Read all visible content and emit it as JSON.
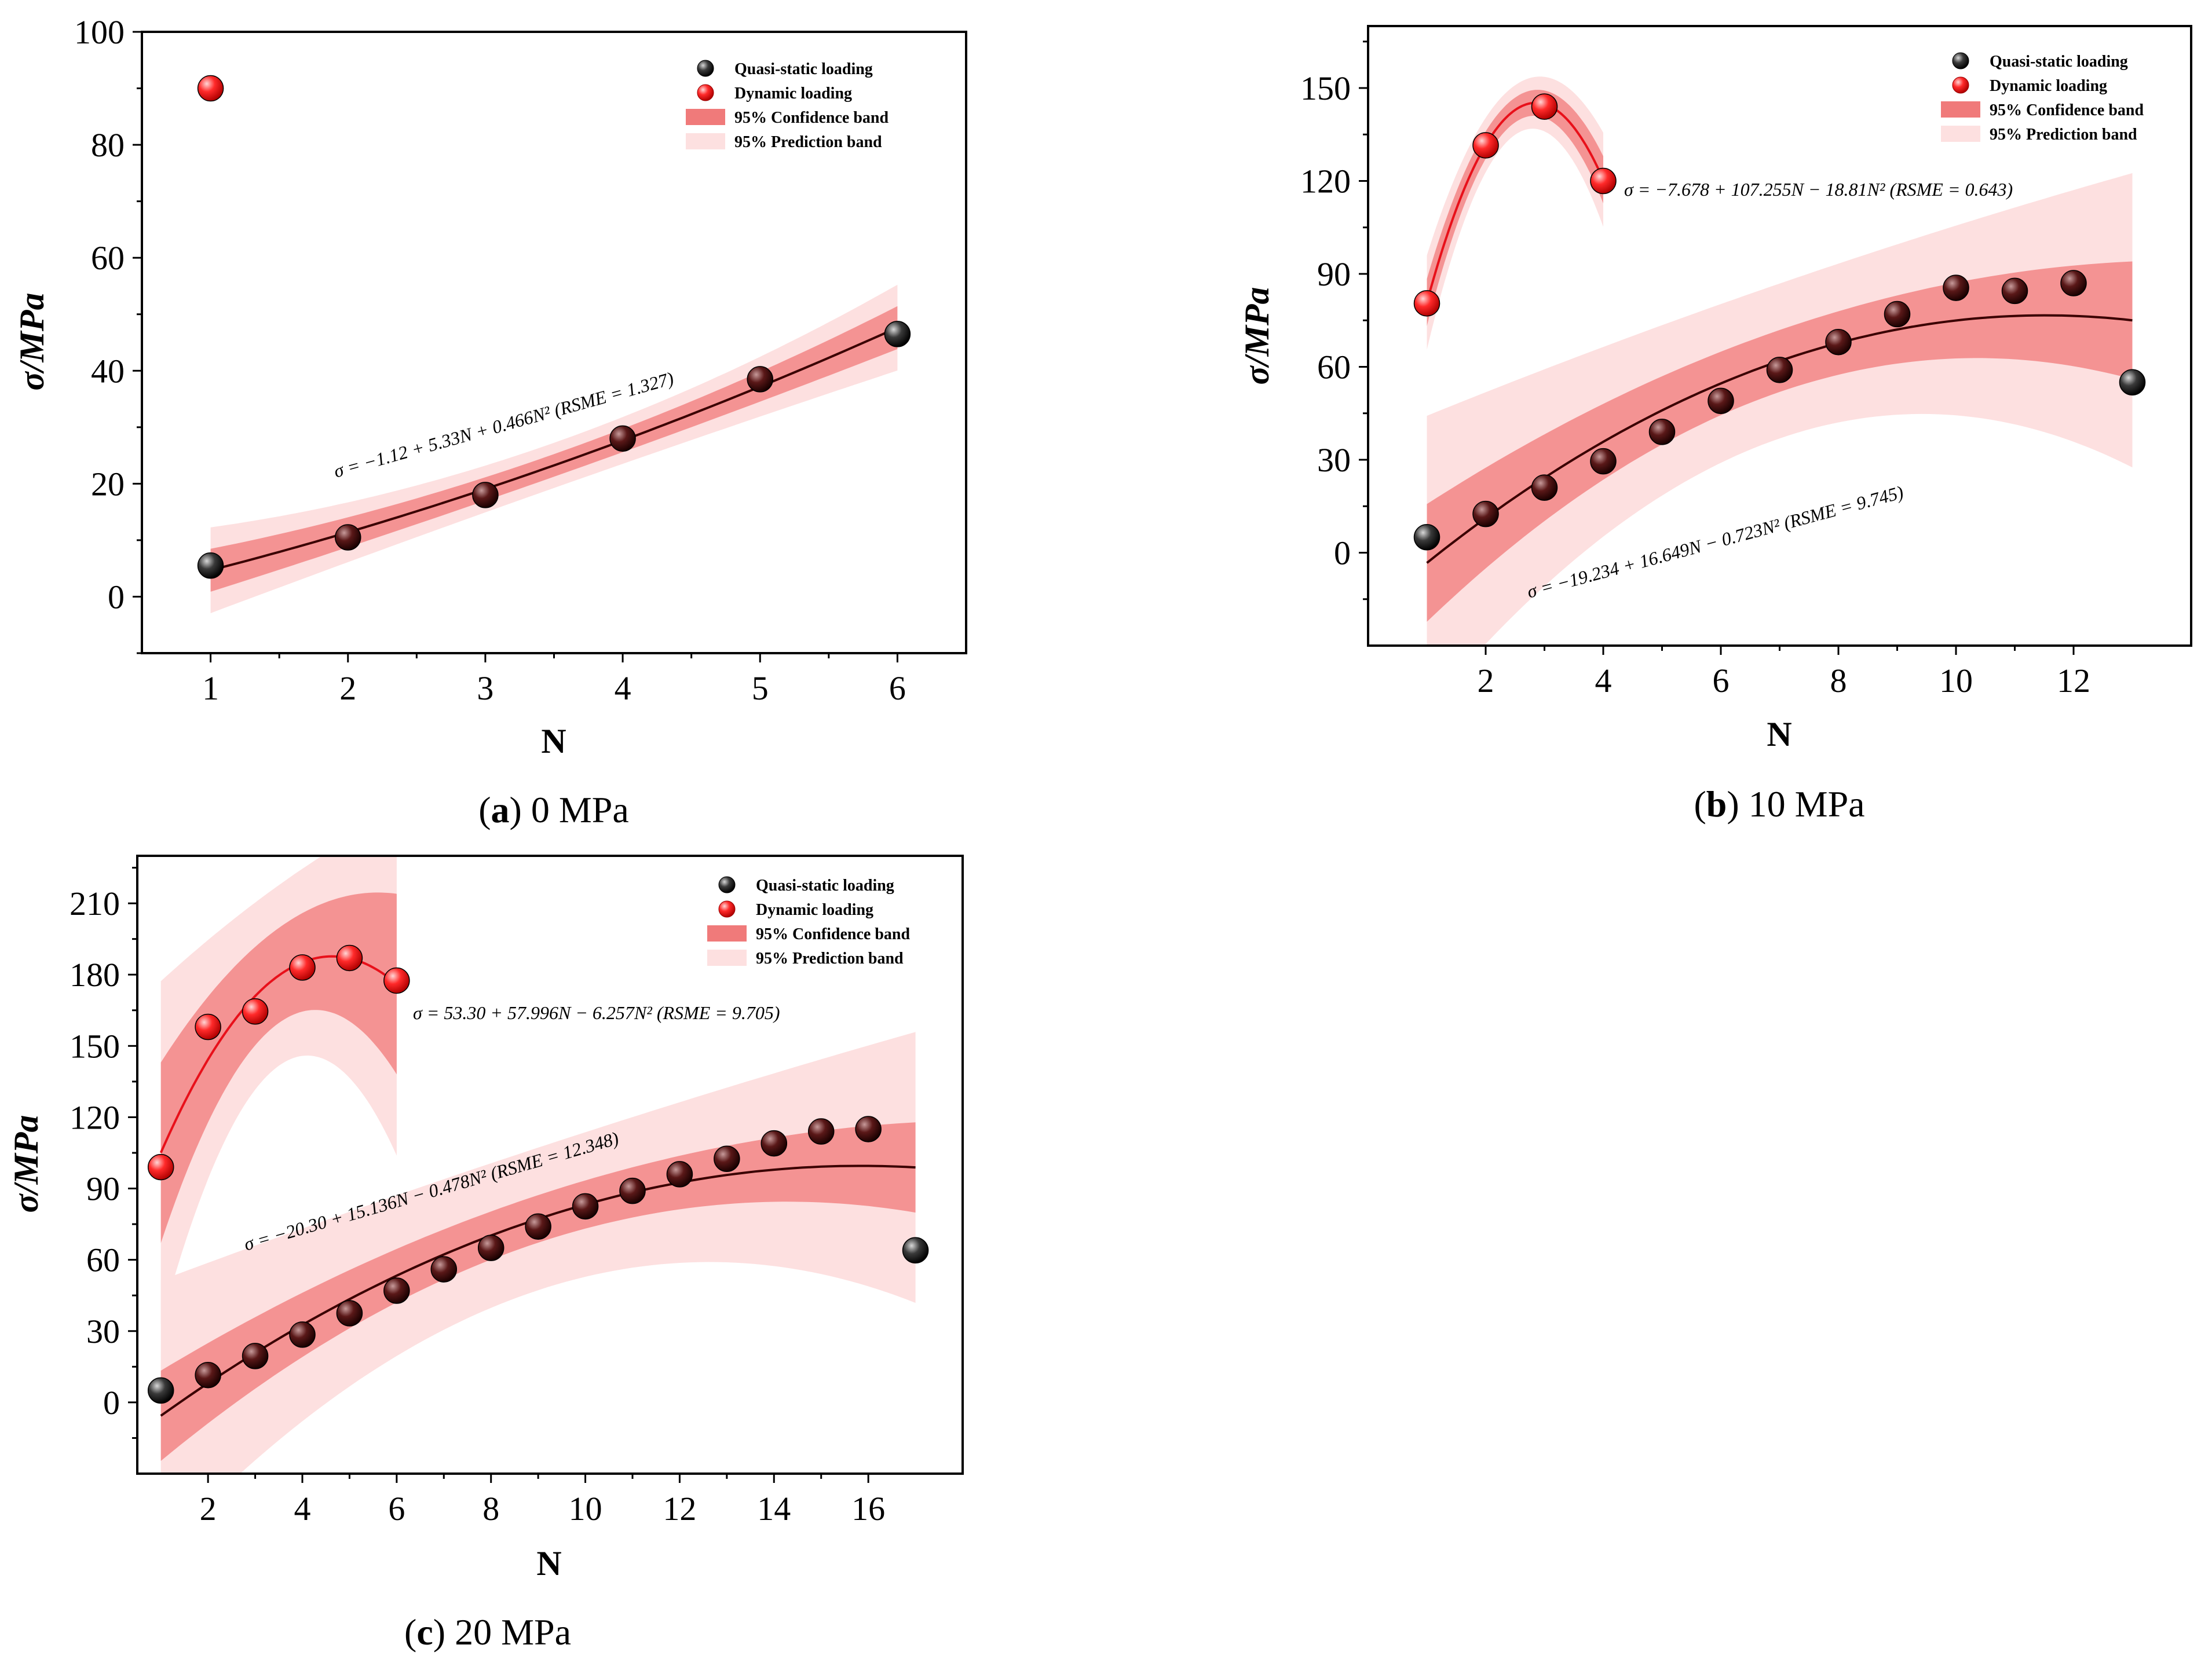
{
  "chart_data": [
    {
      "id": "a",
      "type": "scatter",
      "caption_letter": "a",
      "caption_rest": " 0 MPa",
      "xlabel": "N",
      "ylabel": "σ/MPa",
      "xlim": [
        0.5,
        6.5
      ],
      "ylim": [
        -10,
        100
      ],
      "xticks": [
        1,
        2,
        3,
        4,
        5,
        6
      ],
      "yticks": [
        0,
        20,
        40,
        60,
        80,
        100
      ],
      "legend": {
        "position": "top-right",
        "items": [
          "Quasi-static loading",
          "Dynamic loading",
          "95% Confidence band",
          "95% Prediction band"
        ]
      },
      "series": [
        {
          "name": "Quasi-static loading",
          "color": "#111111",
          "x": [
            1,
            2,
            3,
            4,
            5,
            6
          ],
          "y": [
            5.5,
            10.5,
            18,
            28,
            38.5,
            46.5
          ],
          "fit": {
            "coef": [
              -1.12,
              5.33,
              0.466
            ],
            "x_range": [
              1,
              6
            ],
            "conf": 2.0,
            "pred": 4.0
          },
          "equation": "σ = −1.12 + 5.33N + 0.466N² (RSME = 1.327)"
        },
        {
          "name": "Dynamic loading",
          "color": "#e8101a",
          "x": [
            1
          ],
          "y": [
            90
          ]
        }
      ]
    },
    {
      "id": "b",
      "type": "scatter",
      "caption_letter": "b",
      "caption_rest": " 10 MPa",
      "xlabel": "N",
      "ylabel": "σ/MPa",
      "xlim": [
        0,
        14
      ],
      "ylim": [
        -30,
        170
      ],
      "xticks": [
        2,
        4,
        6,
        8,
        10,
        12
      ],
      "yticks": [
        0,
        30,
        60,
        90,
        120,
        150
      ],
      "legend": {
        "position": "top-right",
        "items": [
          "Quasi-static loading",
          "Dynamic loading",
          "95% Confidence band",
          "95% Prediction band"
        ]
      },
      "series": [
        {
          "name": "Quasi-static loading",
          "color": "#111111",
          "x": [
            1,
            2,
            3,
            4,
            5,
            6,
            7,
            8,
            9,
            10,
            11,
            12,
            13
          ],
          "y": [
            5,
            12.5,
            21,
            29.5,
            39,
            49,
            59,
            68,
            77,
            85.5,
            84.5,
            87,
            55
          ],
          "fit": {
            "coef": [
              -19.234,
              16.649,
              -0.723
            ],
            "x_range": [
              1,
              13
            ],
            "conf": 10,
            "pred": 25
          },
          "equation": "σ = −19.234 + 16.649N − 0.723N² (RSME = 9.745)"
        },
        {
          "name": "Dynamic loading",
          "color": "#e8101a",
          "x": [
            1,
            2,
            3,
            4
          ],
          "y": [
            80.5,
            131.5,
            144,
            120
          ],
          "fit": {
            "coef": [
              -7.678,
              107.255,
              -18.81
            ],
            "x_range": [
              1,
              4
            ],
            "conf": 4,
            "pred": 8
          },
          "equation": "σ = −7.678 + 107.255N − 18.81N² (RSME = 0.643)"
        }
      ]
    },
    {
      "id": "c",
      "type": "scatter",
      "caption_letter": "c",
      "caption_rest": " 20 MPa",
      "xlabel": "N",
      "ylabel": "σ/MPa",
      "xlim": [
        0.5,
        18
      ],
      "ylim": [
        -30,
        230
      ],
      "xticks": [
        2,
        4,
        6,
        8,
        10,
        12,
        14,
        16
      ],
      "yticks": [
        0,
        30,
        60,
        90,
        120,
        150,
        180,
        210
      ],
      "legend": {
        "position": "top-right",
        "items": [
          "Quasi-static loading",
          "Dynamic loading",
          "95% Confidence band",
          "95% Prediction band"
        ]
      },
      "series": [
        {
          "name": "Quasi-static loading",
          "color": "#111111",
          "x": [
            1,
            2,
            3,
            4,
            5,
            6,
            7,
            8,
            9,
            10,
            11,
            12,
            13,
            14,
            15,
            16,
            17
          ],
          "y": [
            5,
            11.5,
            19.5,
            28.5,
            37.5,
            47,
            56,
            65,
            74,
            82.5,
            89,
            96,
            102.5,
            109,
            114,
            115,
            64
          ],
          "fit": {
            "coef": [
              -20.3,
              15.136,
              -0.478
            ],
            "x_range": [
              1,
              17
            ],
            "conf": 10,
            "pred": 30
          },
          "equation": "σ = −20.30 + 15.136N − 0.478N² (RSME = 12.348)"
        },
        {
          "name": "Dynamic loading",
          "color": "#e8101a",
          "x": [
            1,
            2,
            3,
            4,
            5,
            6
          ],
          "y": [
            99,
            158,
            164.5,
            183,
            187,
            177.5
          ],
          "fit": {
            "coef": [
              53.3,
              57.996,
              -6.257
            ],
            "x_range": [
              1,
              6
            ],
            "conf": 20,
            "pred": 38
          },
          "equation": "σ = 53.30 + 57.996N − 6.257N² (RSME = 9.705)"
        }
      ]
    }
  ]
}
